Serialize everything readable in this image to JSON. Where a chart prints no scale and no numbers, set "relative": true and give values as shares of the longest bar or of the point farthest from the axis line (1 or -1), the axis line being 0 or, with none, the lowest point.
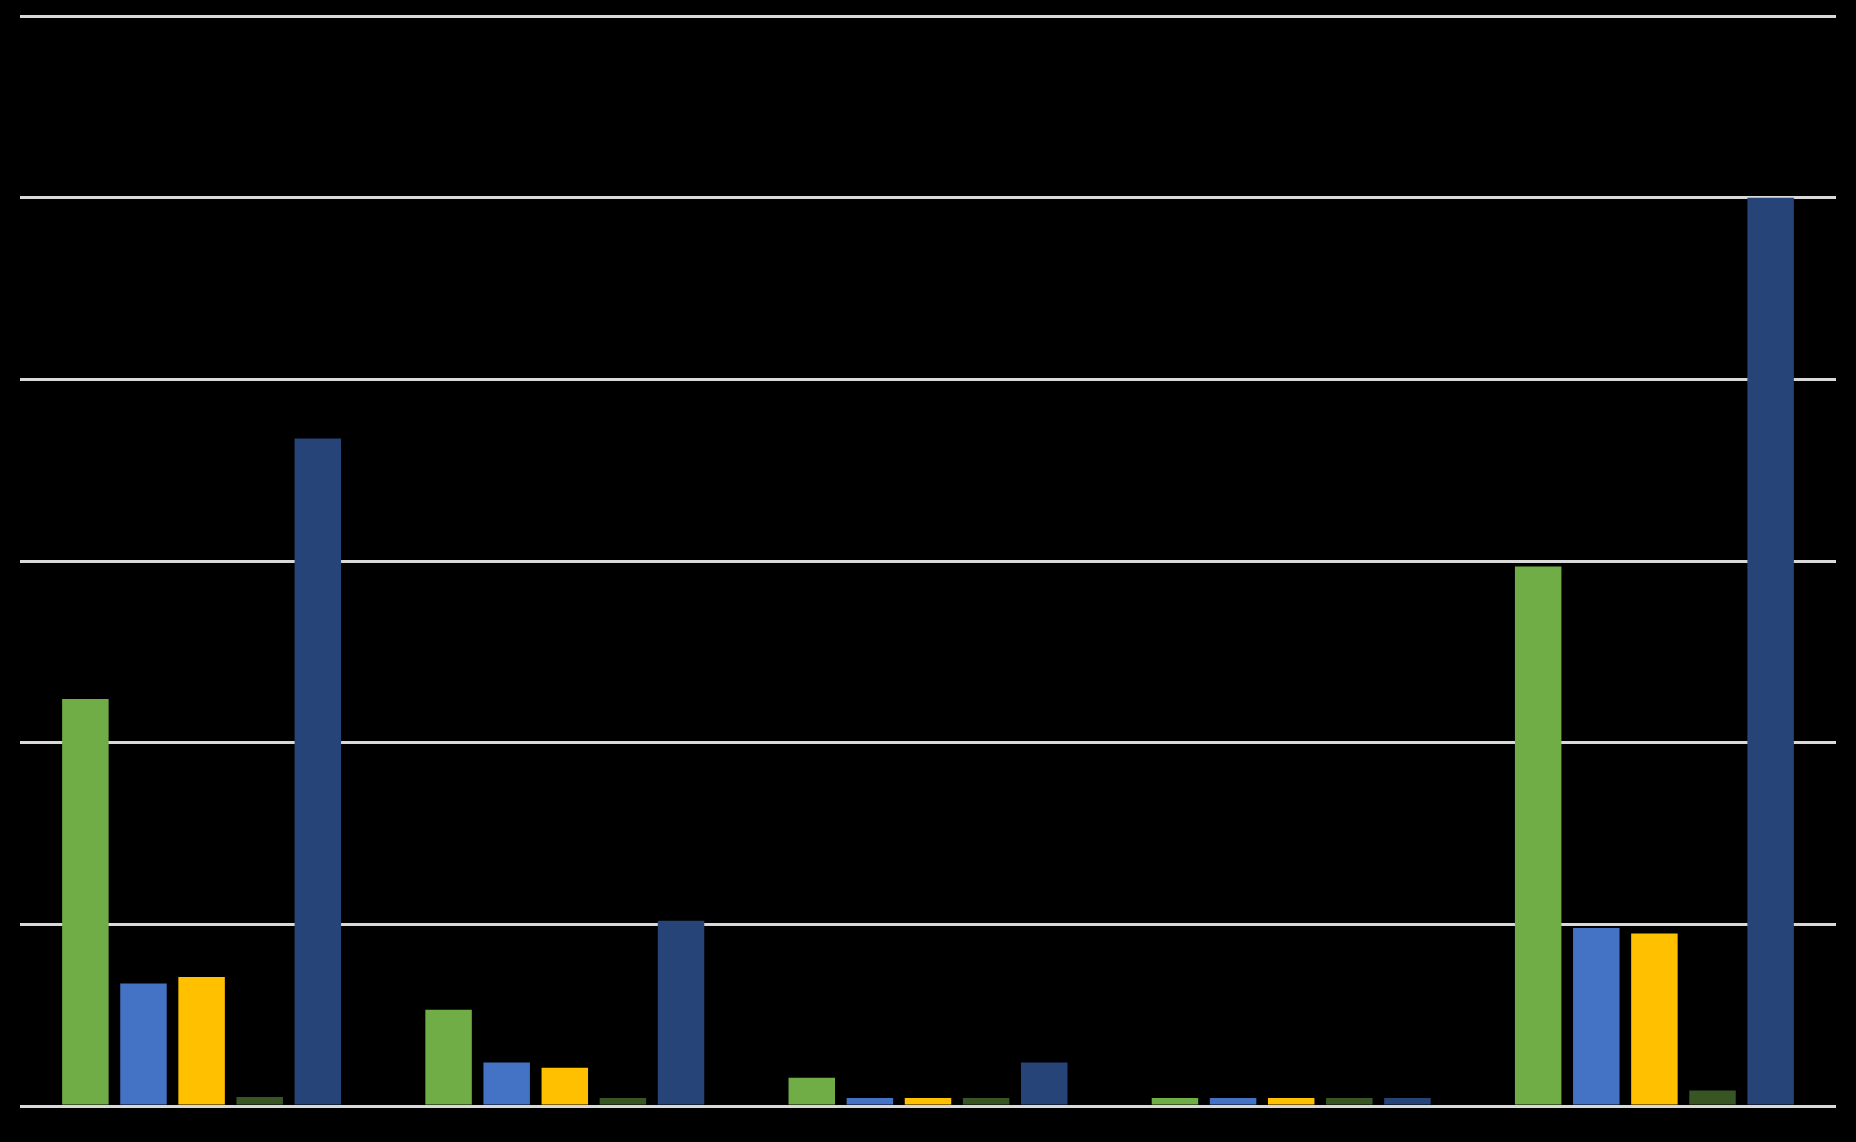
{
  "chart_data": {
    "type": "bar",
    "relative": true,
    "grid": "y",
    "legend": false,
    "categories": [
      null,
      null,
      null,
      null,
      null
    ],
    "series": [
      {
        "color": "#70ad47",
        "values": [
          0.448,
          0.106,
          0.031,
          0.004,
          0.594
        ]
      },
      {
        "color": "#4472c4",
        "values": [
          0.135,
          0.048,
          0.006,
          0.004,
          0.196
        ]
      },
      {
        "color": "#ffc000",
        "values": [
          0.142,
          0.042,
          0.004,
          0.004,
          0.19
        ]
      },
      {
        "color": "#375623",
        "values": [
          0.01,
          0.004,
          0.004,
          0.004,
          0.017
        ]
      },
      {
        "color": "#264478",
        "values": [
          0.735,
          0.204,
          0.048,
          0.004,
          1
        ]
      }
    ]
  }
}
